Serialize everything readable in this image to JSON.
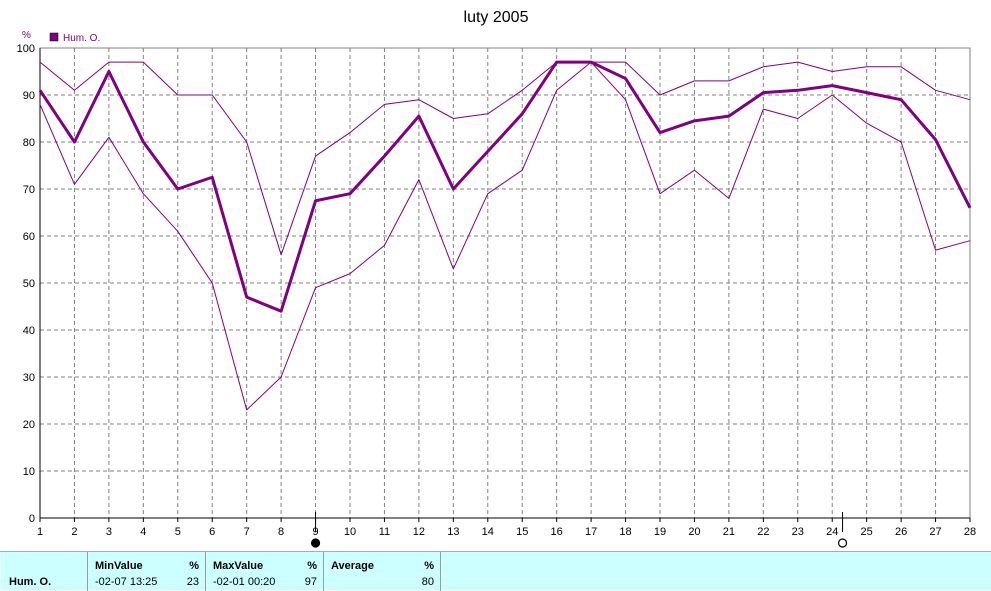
{
  "chart_data": {
    "type": "line",
    "title": "luty 2005",
    "ylabel": "%",
    "ylim": [
      0,
      100
    ],
    "yticks": [
      0,
      10,
      20,
      30,
      40,
      50,
      60,
      70,
      80,
      90,
      100
    ],
    "x": [
      1,
      2,
      3,
      4,
      5,
      6,
      7,
      8,
      9,
      10,
      11,
      12,
      13,
      14,
      15,
      16,
      17,
      18,
      19,
      20,
      21,
      22,
      23,
      24,
      25,
      26,
      27,
      28
    ],
    "xlim": [
      1,
      28
    ],
    "grid": true,
    "legend": "top-left",
    "series": [
      {
        "name": "Hum. O.",
        "role": "average",
        "color": "#800080",
        "values": [
          91,
          80,
          95,
          80,
          70,
          72.5,
          47,
          44,
          67.5,
          69,
          77,
          85.5,
          70,
          78,
          86,
          97,
          97,
          93.5,
          82,
          84.5,
          85.5,
          90.5,
          91,
          92,
          90.5,
          89,
          80.5,
          66
        ]
      },
      {
        "role": "max",
        "color": "#800080",
        "values": [
          97,
          91,
          97,
          97,
          90,
          90,
          80,
          56,
          77,
          82,
          88,
          89,
          85,
          86,
          91,
          97,
          97,
          97,
          90,
          93,
          93,
          96,
          97,
          95,
          96,
          96,
          91,
          89
        ]
      },
      {
        "role": "min",
        "color": "#800080",
        "values": [
          88,
          71,
          81,
          69,
          61,
          50,
          23,
          30,
          49,
          52,
          58,
          72,
          53,
          69,
          74,
          91,
          97,
          89,
          69,
          74,
          68,
          87,
          85,
          90,
          84,
          80,
          57,
          59
        ]
      }
    ],
    "markers": [
      {
        "x": 9,
        "symbol": "filled-circle",
        "color": "#000000"
      },
      {
        "x": 24.3,
        "symbol": "open-circle",
        "color": "#000000"
      }
    ]
  },
  "stats": {
    "series_name": "Hum. O.",
    "min": {
      "header": "MinValue",
      "unit": "%",
      "datetime": "-02-07  13:25",
      "value": "23"
    },
    "max": {
      "header": "MaxValue",
      "unit": "%",
      "datetime": "-02-01  00:20",
      "value": "97"
    },
    "avg": {
      "header": "Average",
      "unit": "%",
      "value": "80"
    }
  },
  "colors": {
    "series": "#800080",
    "grid": "#808080",
    "panel": "#ccffff"
  }
}
